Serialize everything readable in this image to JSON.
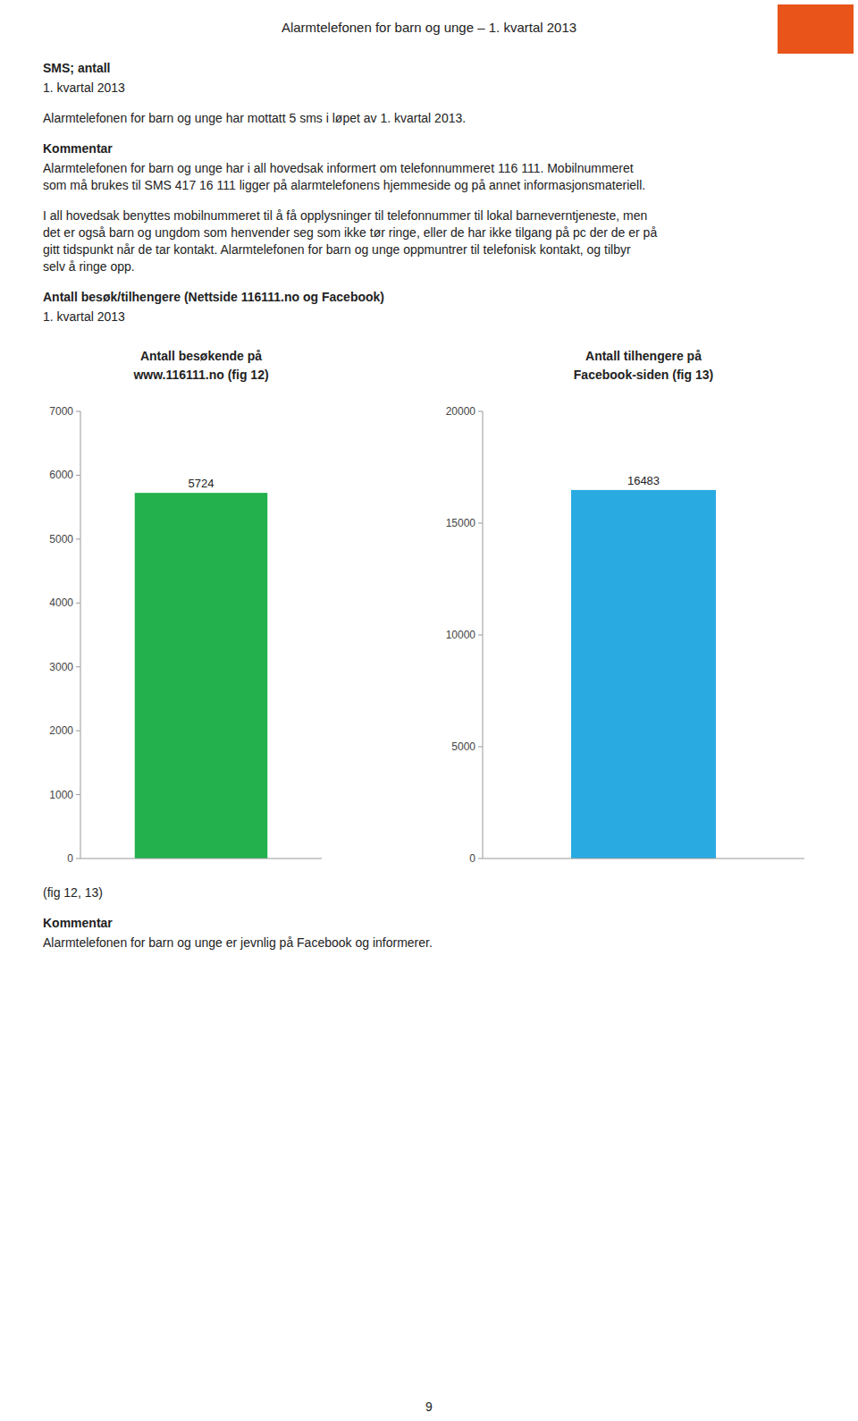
{
  "page_title": "Alarmtelefonen for barn og unge – 1. kvartal 2013",
  "logo_color": "#E8541A",
  "content": [
    {
      "heading": "SMS; antall"
    },
    {
      "lines": [
        "1. kvartal 2013"
      ]
    },
    {
      "lines": [
        "Alarmtelefonen for barn og unge har mottatt 5 sms i løpet av 1. kvartal 2013."
      ]
    },
    {
      "heading": "Kommentar"
    },
    {
      "lines": [
        "Alarmtelefonen for barn og unge har i all hovedsak informert om telefonnummeret 116 111. Mobilnummeret",
        "som må brukes til SMS 417 16 111 ligger på alarmtelefonens hjemmeside og på annet informasjonsmateriell."
      ]
    },
    {
      "lines": [
        "I all hovedsak benyttes mobilnummeret til å få opplysninger til telefonnummer til lokal barneverntjeneste, men",
        "det er også barn og ungdom som henvender seg som ikke tør ringe, eller de har ikke tilgang på pc der de er på",
        "gitt tidspunkt når de tar kontakt. Alarmtelefonen for barn og unge oppmuntrer til telefonisk kontakt, og tilbyr",
        "selv å ringe opp."
      ]
    },
    {
      "heading": "Antall besøk/tilhengere (Nettside 116111.no og Facebook)"
    },
    {
      "lines": [
        "1. kvartal 2013"
      ]
    }
  ],
  "chart_data": [
    {
      "type": "bar",
      "title": "Antall besøkende på\nwww.116111.no (fig 12)",
      "categories": [
        null
      ],
      "values": [
        5724
      ],
      "color": "#22B14C",
      "ylim": [
        0,
        7000
      ],
      "yticks": [
        0,
        1000,
        2000,
        3000,
        4000,
        5000,
        6000,
        7000
      ],
      "data_labels": true,
      "tick_labels": "y",
      "grid": false
    },
    {
      "type": "bar",
      "title": "Antall tilhengere på\nFacebook-siden (fig 13)",
      "categories": [
        null
      ],
      "values": [
        16483
      ],
      "color": "#29ABE2",
      "ylim": [
        0,
        20000
      ],
      "yticks": [
        0,
        5000,
        10000,
        15000,
        20000
      ],
      "data_labels": true,
      "tick_labels": "y",
      "grid": false
    }
  ],
  "after_charts": [
    {
      "lines": [
        "(fig 12, 13)"
      ]
    },
    {
      "heading": "Kommentar"
    },
    {
      "lines": [
        "Alarmtelefonen for barn og unge er jevnlig på Facebook og informerer."
      ]
    }
  ],
  "page_number": "9"
}
